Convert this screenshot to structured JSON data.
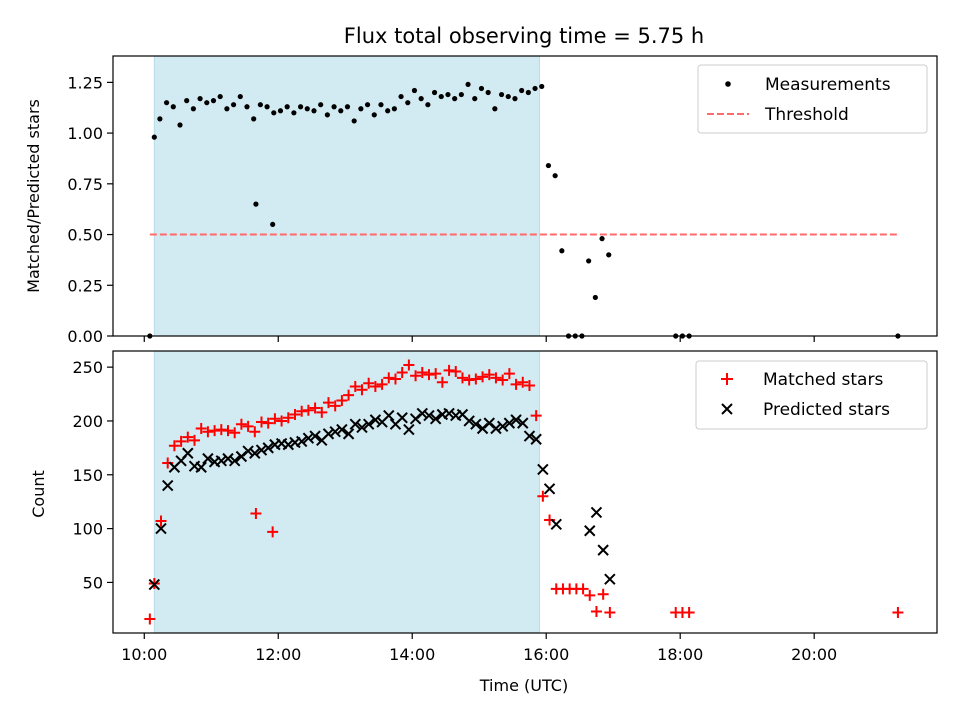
{
  "figure": {
    "title": "Flux total observing time = 5.75 h",
    "xlabel": "Time (UTC)"
  },
  "chart_data": [
    {
      "type": "scatter",
      "ylabel": "Matched/Predicted stars",
      "xlim": [
        "09:32",
        "21:50"
      ],
      "ylim": [
        0,
        1.38
      ],
      "yticks": [
        0.0,
        0.25,
        0.5,
        0.75,
        1.0,
        1.25
      ],
      "ytick_labels": [
        "0.00",
        "0.25",
        "0.50",
        "0.75",
        "1.00",
        "1.25"
      ],
      "shaded_span": {
        "start": "10:09",
        "end": "15:54",
        "color": "#add8e6"
      },
      "threshold": {
        "y": 0.5,
        "from": "10:05",
        "to": "21:15",
        "color": "#ff6b6b"
      },
      "legend": {
        "position": "top-right",
        "entries": [
          "Measurements",
          "Threshold"
        ]
      },
      "series": [
        {
          "name": "Measurements",
          "color": "#000000",
          "marker": "dot",
          "x": [
            "10:05",
            "10:09",
            "10:14",
            "10:20",
            "10:26",
            "10:32",
            "10:38",
            "10:44",
            "10:50",
            "10:56",
            "11:02",
            "11:08",
            "11:14",
            "11:20",
            "11:26",
            "11:32",
            "11:38",
            "11:44",
            "11:50",
            "11:56",
            "12:02",
            "12:08",
            "12:14",
            "12:20",
            "12:26",
            "12:32",
            "12:38",
            "12:44",
            "12:50",
            "12:56",
            "13:02",
            "13:08",
            "13:14",
            "13:20",
            "13:26",
            "13:32",
            "13:38",
            "13:44",
            "13:50",
            "13:56",
            "14:02",
            "14:08",
            "14:14",
            "14:20",
            "14:26",
            "14:32",
            "14:38",
            "14:44",
            "14:50",
            "14:56",
            "15:02",
            "15:08",
            "15:14",
            "15:20",
            "15:26",
            "15:32",
            "15:38",
            "15:44",
            "15:50",
            "15:56",
            "16:02",
            "16:08",
            "16:14",
            "16:20",
            "16:26",
            "16:32",
            "16:38",
            "16:44",
            "16:50",
            "16:56",
            "11:40",
            "11:55",
            "17:56",
            "18:02",
            "18:08",
            "21:15"
          ],
          "y": [
            0.0,
            0.98,
            1.07,
            1.15,
            1.13,
            1.04,
            1.16,
            1.12,
            1.17,
            1.15,
            1.16,
            1.18,
            1.12,
            1.14,
            1.18,
            1.13,
            1.07,
            1.14,
            1.13,
            1.1,
            1.11,
            1.13,
            1.1,
            1.13,
            1.12,
            1.11,
            1.14,
            1.09,
            1.13,
            1.11,
            1.13,
            1.06,
            1.12,
            1.14,
            1.09,
            1.14,
            1.11,
            1.12,
            1.18,
            1.15,
            1.21,
            1.17,
            1.14,
            1.2,
            1.18,
            1.19,
            1.17,
            1.19,
            1.24,
            1.17,
            1.22,
            1.2,
            1.12,
            1.19,
            1.18,
            1.17,
            1.21,
            1.2,
            1.22,
            1.23,
            0.84,
            0.79,
            0.42,
            0.0,
            0.0,
            0.0,
            0.37,
            0.19,
            0.48,
            0.4,
            0.65,
            0.55,
            0.0,
            0.0,
            0.0,
            0.0
          ]
        }
      ]
    },
    {
      "type": "scatter",
      "ylabel": "Count",
      "xlim": [
        "09:32",
        "21:50"
      ],
      "ylim": [
        3,
        265
      ],
      "yticks": [
        50,
        100,
        150,
        200,
        250
      ],
      "xticks": [
        "10:00",
        "12:00",
        "14:00",
        "16:00",
        "18:00",
        "20:00"
      ],
      "shaded_span": {
        "start": "10:09",
        "end": "15:54",
        "color": "#add8e6"
      },
      "legend": {
        "position": "top-right",
        "entries": [
          "Matched stars",
          "Predicted stars"
        ]
      },
      "series": [
        {
          "name": "Matched stars",
          "color": "#ff0000",
          "marker": "plus",
          "x": [
            "10:05",
            "10:09",
            "10:15",
            "10:21",
            "10:27",
            "10:33",
            "10:39",
            "10:45",
            "10:51",
            "10:57",
            "11:03",
            "11:09",
            "11:15",
            "11:21",
            "11:27",
            "11:33",
            "11:39",
            "11:45",
            "11:51",
            "11:57",
            "12:03",
            "12:09",
            "12:15",
            "12:21",
            "12:27",
            "12:33",
            "12:39",
            "12:45",
            "12:51",
            "12:57",
            "13:03",
            "13:09",
            "13:15",
            "13:21",
            "13:27",
            "13:33",
            "13:39",
            "13:45",
            "13:51",
            "13:57",
            "14:03",
            "14:09",
            "14:15",
            "14:21",
            "14:27",
            "14:33",
            "14:39",
            "14:45",
            "14:51",
            "14:57",
            "15:03",
            "15:09",
            "15:15",
            "15:21",
            "15:27",
            "15:33",
            "15:39",
            "15:45",
            "15:51",
            "15:57",
            "16:03",
            "16:09",
            "16:15",
            "16:21",
            "16:27",
            "16:33",
            "16:39",
            "16:45",
            "16:51",
            "16:57",
            "11:40",
            "11:55",
            "17:56",
            "18:02",
            "18:08",
            "21:15"
          ],
          "y": [
            16,
            49,
            107,
            161,
            177,
            181,
            185,
            182,
            193,
            190,
            191,
            192,
            191,
            189,
            197,
            195,
            190,
            199,
            198,
            202,
            200,
            203,
            206,
            209,
            210,
            212,
            208,
            217,
            214,
            219,
            224,
            232,
            229,
            235,
            232,
            234,
            240,
            239,
            245,
            252,
            242,
            245,
            243,
            244,
            236,
            247,
            246,
            240,
            238,
            239,
            241,
            243,
            240,
            238,
            244,
            234,
            236,
            233,
            205,
            130,
            108,
            44,
            44,
            44,
            44,
            44,
            38,
            23,
            39,
            22,
            114,
            97,
            22,
            22,
            22,
            22
          ]
        },
        {
          "name": "Predicted stars",
          "color": "#000000",
          "marker": "x",
          "x": [
            "10:09",
            "10:15",
            "10:21",
            "10:27",
            "10:33",
            "10:39",
            "10:45",
            "10:51",
            "10:57",
            "11:03",
            "11:09",
            "11:15",
            "11:21",
            "11:27",
            "11:33",
            "11:39",
            "11:45",
            "11:51",
            "11:57",
            "12:03",
            "12:09",
            "12:15",
            "12:21",
            "12:27",
            "12:33",
            "12:39",
            "12:45",
            "12:51",
            "12:57",
            "13:03",
            "13:09",
            "13:15",
            "13:21",
            "13:27",
            "13:33",
            "13:39",
            "13:45",
            "13:51",
            "13:57",
            "14:03",
            "14:09",
            "14:15",
            "14:21",
            "14:27",
            "14:33",
            "14:39",
            "14:45",
            "14:51",
            "14:57",
            "15:03",
            "15:09",
            "15:15",
            "15:21",
            "15:27",
            "15:33",
            "15:39",
            "15:45",
            "15:51",
            "15:57",
            "16:03",
            "16:09",
            "16:39",
            "16:45",
            "16:51",
            "16:57"
          ],
          "y": [
            48,
            100,
            140,
            157,
            163,
            170,
            158,
            157,
            165,
            162,
            163,
            165,
            163,
            167,
            172,
            170,
            173,
            175,
            178,
            179,
            178,
            180,
            181,
            184,
            186,
            182,
            188,
            190,
            192,
            188,
            197,
            194,
            197,
            201,
            199,
            205,
            197,
            203,
            192,
            202,
            207,
            205,
            202,
            206,
            207,
            205,
            206,
            200,
            197,
            193,
            198,
            193,
            195,
            198,
            201,
            198,
            186,
            183,
            155,
            137,
            104,
            98,
            115,
            80,
            53
          ]
        }
      ]
    }
  ]
}
